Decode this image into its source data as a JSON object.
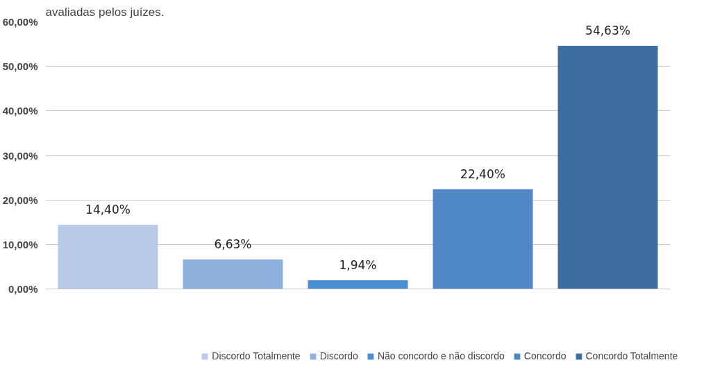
{
  "chart_data": {
    "type": "bar",
    "title": "avaliadas pelos juízes.",
    "categories": [
      null,
      null,
      null,
      null,
      null
    ],
    "series": [
      {
        "name": "Discordo Totalmente",
        "color": "#b9cbe6",
        "values": [
          14.4,
          null,
          null,
          null,
          null
        ],
        "value_labels": [
          "14,40%",
          null,
          null,
          null,
          null
        ]
      },
      {
        "name": "Discordo",
        "color": "#8eb0dd",
        "values": [
          null,
          6.63,
          null,
          null,
          null
        ],
        "value_labels": [
          null,
          "6,63%",
          null,
          null,
          null
        ]
      },
      {
        "name": "Não concordo e não discordo",
        "color": "#4a8fd6",
        "values": [
          null,
          null,
          1.94,
          null,
          null
        ],
        "value_labels": [
          null,
          null,
          "1,94%",
          null,
          null
        ]
      },
      {
        "name": "Concordo",
        "color": "#4f88c4",
        "values": [
          null,
          null,
          null,
          22.4,
          null
        ],
        "value_labels": [
          null,
          null,
          null,
          "22,40%",
          null
        ]
      },
      {
        "name": "Concordo Totalmente",
        "color": "#3d6c9f",
        "values": [
          null,
          null,
          null,
          null,
          54.63
        ],
        "value_labels": [
          null,
          null,
          null,
          null,
          "54,63%"
        ]
      }
    ],
    "ylim": [
      0,
      60
    ],
    "yticks": [
      {
        "value": 0,
        "label": "0,00%"
      },
      {
        "value": 10,
        "label": "10,00%"
      },
      {
        "value": 20,
        "label": "20,00%"
      },
      {
        "value": 30,
        "label": "30,00%"
      },
      {
        "value": 40,
        "label": "40,00%"
      },
      {
        "value": 50,
        "label": "50,00%"
      },
      {
        "value": 60,
        "label": "60,00%"
      }
    ],
    "grid": "y",
    "legend": "bottom"
  }
}
